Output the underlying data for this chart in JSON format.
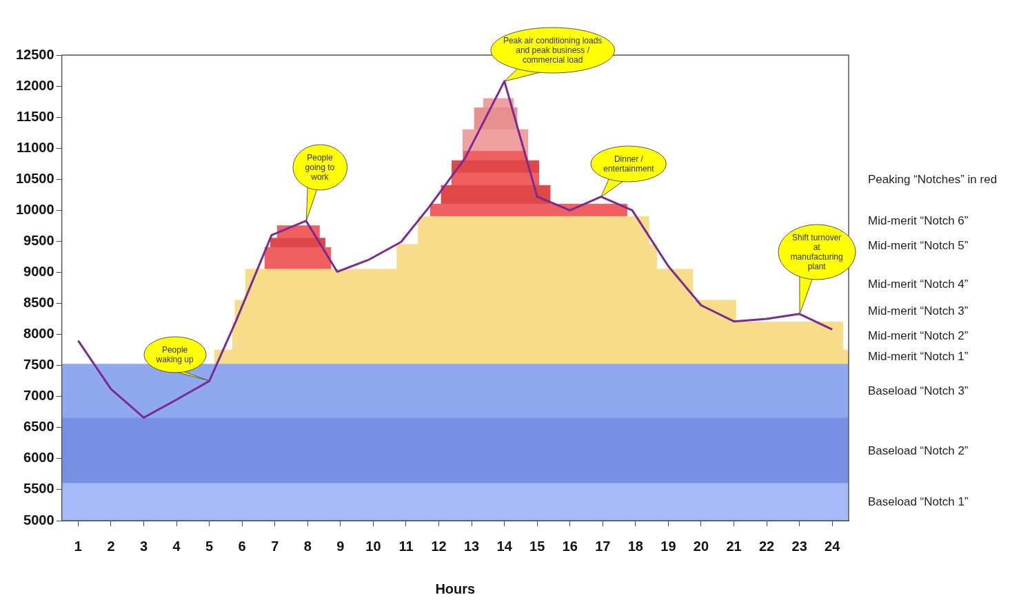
{
  "chart_data": {
    "type": "line",
    "xlabel": "Hours",
    "xlim": [
      0.5,
      24.5
    ],
    "xticks": [
      1,
      2,
      3,
      4,
      5,
      6,
      7,
      8,
      9,
      10,
      11,
      12,
      13,
      14,
      15,
      16,
      17,
      18,
      19,
      20,
      21,
      22,
      23,
      24
    ],
    "ylim": [
      5000,
      12500
    ],
    "yticks": [
      5000,
      5500,
      6000,
      6500,
      7000,
      7500,
      8000,
      8500,
      9000,
      9500,
      10000,
      10500,
      11000,
      11500,
      12000,
      12500
    ],
    "grid": false,
    "legend": false,
    "marker": "none",
    "series": [
      {
        "type": "area",
        "color": "#f0a0a0",
        "x": [
          13.35,
          14.29
        ],
        "values": [
          11800,
          11800
        ]
      },
      {
        "type": "area",
        "color": "#e89090",
        "x": [
          13.07,
          14.4
        ],
        "values": [
          11650,
          11650
        ]
      },
      {
        "type": "area",
        "color": "#f0a0a0",
        "x": [
          12.72,
          14.73
        ],
        "values": [
          11300,
          11300
        ]
      },
      {
        "type": "area",
        "color": "#f06060",
        "x": [
          12.74,
          14.66
        ],
        "values": [
          10950,
          10950
        ]
      },
      {
        "type": "area",
        "color": "#e04848",
        "x": [
          12.39,
          15.06
        ],
        "values": [
          10800,
          10800
        ]
      },
      {
        "type": "area",
        "color": "#f06060",
        "x": [
          12.41,
          15.06
        ],
        "values": [
          10600,
          10600
        ]
      },
      {
        "type": "area",
        "color": "#e04848",
        "x": [
          12.06,
          15.41
        ],
        "values": [
          10400,
          10400
        ]
      },
      {
        "type": "area",
        "color": "#f06060",
        "x": [
          11.73,
          17.75
        ],
        "values": [
          10100,
          10100
        ]
      },
      {
        "type": "area",
        "name": "Mid-merit “Notch 6”",
        "color": "#f7dc8a",
        "x": [
          11.36,
          18.42
        ],
        "values": [
          9900,
          9900
        ]
      },
      {
        "type": "area",
        "color": "#f06060",
        "x": [
          7.06,
          8.37
        ],
        "values": [
          9750,
          9750
        ]
      },
      {
        "type": "area",
        "color": "#e04848",
        "x": [
          6.86,
          8.54
        ],
        "values": [
          9550,
          9550
        ]
      },
      {
        "type": "area",
        "name": "Mid-merit “Notch 5”",
        "color": "#f7dc8a",
        "x": [
          10.71,
          18.66
        ],
        "values": [
          9450,
          9450
        ]
      },
      {
        "type": "area",
        "color": "#f06060",
        "x": [
          6.68,
          8.72
        ],
        "values": [
          9400,
          9400
        ]
      },
      {
        "type": "area",
        "name": "Mid-merit “Notch 4”",
        "color": "#f7dc8a",
        "x": [
          6.09,
          19.76
        ],
        "values": [
          9050,
          9050
        ]
      },
      {
        "type": "area",
        "name": "Mid-merit “Notch 3”",
        "color": "#f7dc8a",
        "x": [
          5.77,
          21.07
        ],
        "values": [
          8550,
          8550
        ]
      },
      {
        "type": "area",
        "name": "Mid-merit “Notch 2”",
        "color": "#f7dc8a",
        "x": [
          5.7,
          24.33
        ],
        "values": [
          8200,
          8200
        ]
      },
      {
        "type": "area",
        "name": "Mid-merit “Notch 1”",
        "color": "#f7dc8a",
        "x": [
          5.15,
          24.5
        ],
        "values": [
          7750,
          7750
        ]
      },
      {
        "type": "area",
        "name": "Baseload “Notch 3”",
        "color": "#8fa8f0",
        "x": [
          0.5,
          24.5
        ],
        "values": [
          7520,
          7520
        ]
      },
      {
        "type": "area",
        "name": "Baseload “Notch 2”",
        "color": "#7890e4",
        "x": [
          0.5,
          24.5
        ],
        "values": [
          6650,
          6650
        ]
      },
      {
        "type": "area",
        "name": "Baseload “Notch 1”",
        "color": "#a6bbf5",
        "x": [
          0.5,
          24.5
        ],
        "values": [
          5600,
          5600
        ]
      },
      {
        "type": "line",
        "color": "#7b2a90",
        "x": [
          1,
          2,
          3,
          4,
          5,
          5.8,
          6.9,
          7.95,
          8.9,
          9.85,
          10.85,
          11.7,
          12.8,
          14,
          15,
          16,
          16.95,
          17.9,
          19,
          20,
          21,
          22,
          23,
          24
        ],
        "values": [
          7900,
          7120,
          6660,
          6950,
          7250,
          8200,
          9600,
          9830,
          9010,
          9200,
          9490,
          10050,
          10840,
          12080,
          10220,
          10000,
          10220,
          10000,
          9100,
          8470,
          8210,
          8250,
          8330,
          8080
        ]
      }
    ],
    "annotations": [
      {
        "text": "People waking up",
        "x": 5,
        "y": 7250
      },
      {
        "text": "People going to work",
        "x": 7.95,
        "y": 9830
      },
      {
        "text": "Peak air conditioning loads and peak business / commercial load",
        "x": 14,
        "y": 12080
      },
      {
        "text": "Dinner / entertainment",
        "x": 16.95,
        "y": 10220
      },
      {
        "text": "Shift turnover at manufacturing plant",
        "x": 23,
        "y": 8330
      },
      "Peaking “Notches” in red"
    ]
  }
}
